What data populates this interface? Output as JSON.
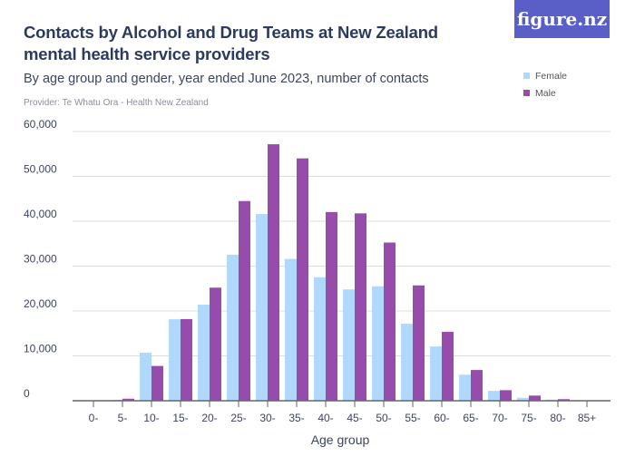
{
  "header": {
    "title": "Contacts by Alcohol and Drug Teams at New Zealand mental health service providers",
    "subtitle": "By age group and gender, year ended June 2023, number of contacts",
    "source": "Provider: Te Whatu Ora - Health New Zealand",
    "logo": "figure.nz"
  },
  "chart_data": {
    "type": "bar",
    "title": "Contacts by Alcohol and Drug Teams at New Zealand mental health service providers",
    "xlabel": "Age group",
    "ylabel": "",
    "ylim": [
      0,
      60000
    ],
    "yticks": [
      0,
      10000,
      20000,
      30000,
      40000,
      50000,
      60000
    ],
    "ytick_labels": [
      "0",
      "10,000",
      "20,000",
      "30,000",
      "40,000",
      "50,000",
      "60,000"
    ],
    "grid": true,
    "legend_position": "top-right",
    "categories": [
      "0-",
      "5-",
      "10-",
      "15-",
      "20-",
      "25-",
      "30-",
      "35-",
      "40-",
      "45-",
      "50-",
      "55-",
      "60-",
      "65-",
      "70-",
      "75-",
      "80-",
      "85+"
    ],
    "series": [
      {
        "name": "Female",
        "color": "#afd8fb",
        "values": [
          0,
          200,
          10700,
          18150,
          21400,
          32550,
          41600,
          31600,
          27500,
          24800,
          25500,
          17150,
          12100,
          5800,
          2200,
          650,
          250,
          100
        ]
      },
      {
        "name": "Male",
        "color": "#974ca9",
        "values": [
          0,
          450,
          7750,
          18200,
          25200,
          44500,
          57150,
          54000,
          42050,
          41750,
          35250,
          25700,
          15350,
          6850,
          2350,
          1150,
          350,
          0
        ]
      }
    ]
  }
}
